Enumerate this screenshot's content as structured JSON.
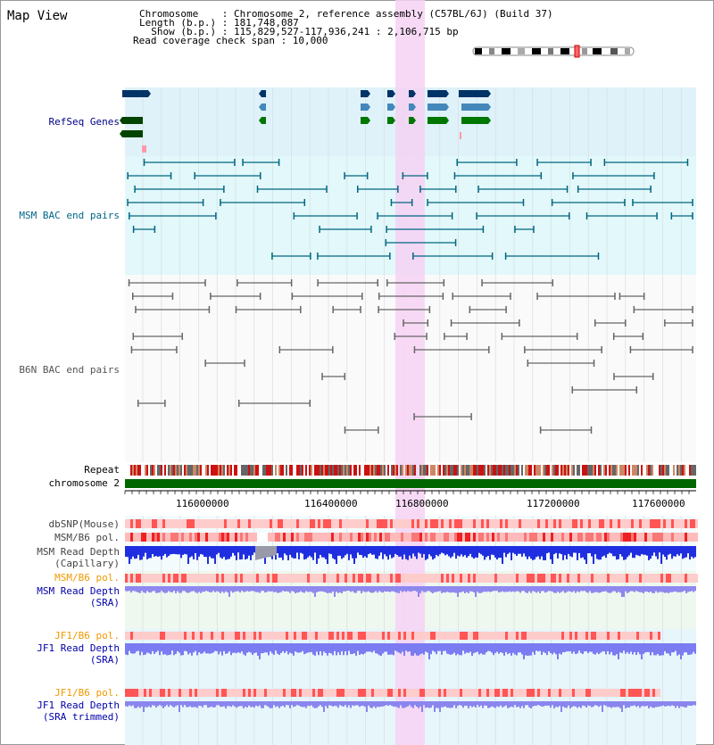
{
  "view": {
    "title": "Map View",
    "chromosome_line": "Chromosome    : Chromosome 2, reference assembly (C57BL/6J) (Build 37)",
    "length_line": "Length (b.p.) : 181,748,087",
    "show_line": "  Show (b.p.) : 115,829,527-117,936,241 : 2,106,715 bp",
    "coverage_line": "Read coverage check span : 10,000"
  },
  "tracks": {
    "refseq": "RefSeq Genes",
    "msm_bac": "MSM BAC end pairs",
    "b6n_bac": "B6N BAC end pairs",
    "repeat": "Repeat",
    "chromosome": "chromosome 2",
    "dbsnp": "dbSNP(Mouse)",
    "msm_b6_pol_cap": "MSM/B6 pol.",
    "msm_depth_cap_1": "MSM Read Depth",
    "msm_depth_cap_2": "(Capillary)",
    "msm_b6_pol_sra": "MSM/B6 pol.",
    "msm_depth_sra_1": "MSM Read Depth",
    "msm_depth_sra_2": "(SRA)",
    "jf1_b6_pol_1": "JF1/B6 pol.",
    "jf1_depth_1": "JF1 Read Depth",
    "jf1_depth_1b": "(SRA)",
    "jf1_b6_pol_2": "JF1/B6 pol.",
    "jf1_depth_2": "JF1 Read Depth",
    "jf1_depth_2b": "(SRA trimmed)"
  },
  "ruler": {
    "ticks": [
      "116000000",
      "116400000",
      "116800000",
      "117200000",
      "117600000"
    ]
  },
  "colors": {
    "refseq_bg": "#dff2fa",
    "msm_bg": "#e2f8fa",
    "b6n_bg": "#fafafa",
    "highlight": "#f6d2f3",
    "chromosome_bar": "#006600",
    "msm_label": "#006688",
    "b6n_label": "#555555",
    "refseq_label": "#000088",
    "pol_label": "#ee9900",
    "depth_label": "#0000aa"
  }
}
